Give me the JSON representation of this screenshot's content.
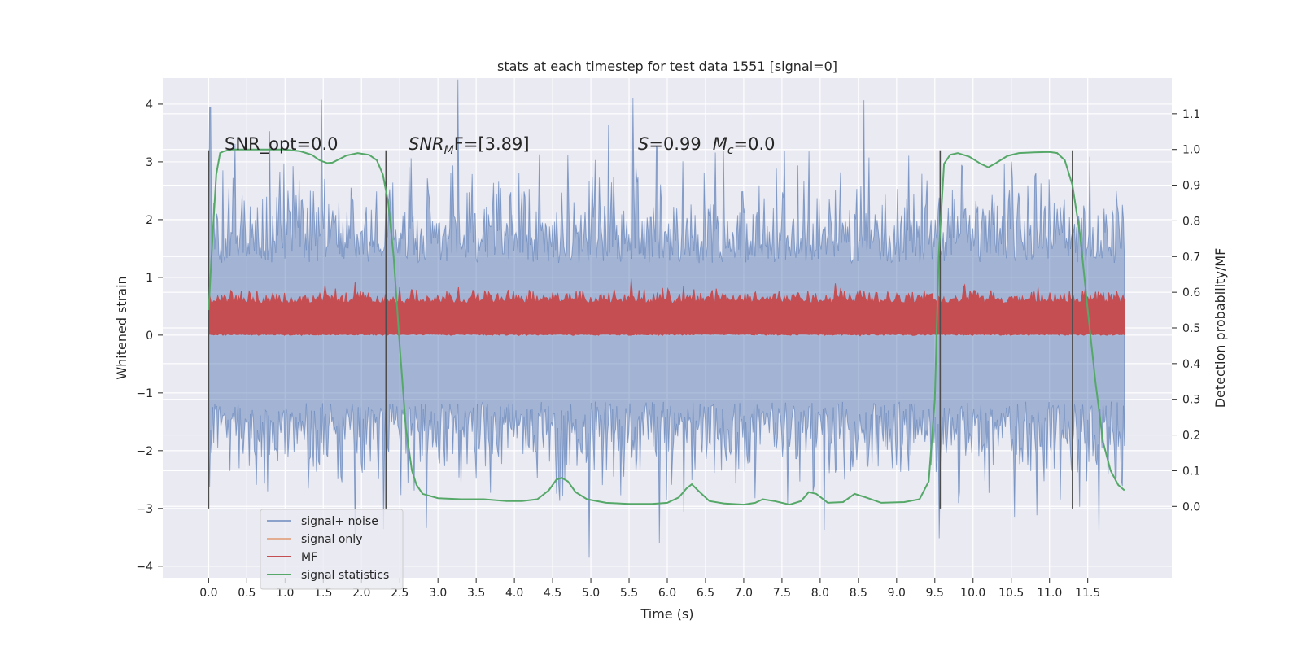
{
  "chart_data": {
    "type": "line",
    "title": "stats at each timestep for test data 1551 [signal=0]",
    "xlabel": "Time (s)",
    "ylabel": "Whitened strain",
    "ylabel_right": "Detection probability/MF",
    "xlim": [
      -0.6,
      12.6
    ],
    "ylim": [
      -4.2,
      4.45
    ],
    "ylim_right": [
      -0.2,
      1.2
    ],
    "x_ticks": [
      "0.0",
      "0.5",
      "1.0",
      "1.5",
      "2.0",
      "2.5",
      "3.0",
      "3.5",
      "4.0",
      "4.5",
      "5.0",
      "5.5",
      "6.0",
      "6.5",
      "7.0",
      "7.5",
      "8.0",
      "8.5",
      "9.0",
      "9.5",
      "10.0",
      "10.5",
      "11.0",
      "11.5"
    ],
    "y_ticks": [
      "4",
      "3",
      "2",
      "1",
      "0",
      "−1",
      "−2",
      "−3",
      "−4"
    ],
    "y_ticks_right": [
      "1.1",
      "1.0",
      "0.9",
      "0.8",
      "0.7",
      "0.6",
      "0.5",
      "0.4",
      "0.3",
      "0.2",
      "0.1",
      "0.0"
    ],
    "grid": true,
    "legend_placement": "lower-left",
    "annotations": {
      "snr_opt": "SNR_opt=0.0",
      "snr_mf_var": "SNR",
      "snr_mf_sub": "M",
      "snr_mf_tail": "F=[3.89]",
      "s_var": "S",
      "s_value": "=0.99",
      "mc_var": "M",
      "mc_sub": "c",
      "mc_value": "=0.0"
    },
    "vertical_markers_x": [
      0.0,
      2.32,
      9.57,
      11.3
    ],
    "series": [
      {
        "name": "signal+ noise",
        "color": "#4c72b0",
        "axis": "left",
        "kind": "noise",
        "x_range": [
          0.0,
          11.98
        ],
        "band_core": [
          -1.15,
          1.25
        ],
        "envelope_typ": [
          -2.3,
          2.4
        ],
        "extremes": [
          {
            "x": 0.02,
            "y": 3.95
          },
          {
            "x": 5.55,
            "y": 4.1
          },
          {
            "x": 4.98,
            "y": -3.85
          },
          {
            "x": 11.65,
            "y": -3.4
          }
        ]
      },
      {
        "name": "signal only",
        "color": "#dd8452",
        "axis": "left",
        "kind": "flat",
        "values": [
          0.0
        ]
      },
      {
        "name": "MF",
        "color": "#c44e52",
        "axis": "left",
        "kind": "noise",
        "x_range": [
          0.0,
          11.98
        ],
        "band_core": [
          0.02,
          0.55
        ],
        "envelope_typ": [
          0.0,
          0.75
        ]
      },
      {
        "name": "signal statistics",
        "color": "#55a868",
        "axis": "right",
        "kind": "line",
        "x": [
          0.0,
          0.05,
          0.1,
          0.15,
          0.2,
          0.3,
          0.5,
          0.8,
          1.0,
          1.2,
          1.35,
          1.45,
          1.55,
          1.62,
          1.7,
          1.8,
          1.95,
          2.1,
          2.2,
          2.28,
          2.35,
          2.42,
          2.5,
          2.58,
          2.66,
          2.72,
          2.8,
          3.0,
          3.3,
          3.6,
          3.9,
          4.1,
          4.3,
          4.45,
          4.55,
          4.62,
          4.7,
          4.8,
          4.95,
          5.2,
          5.5,
          5.8,
          6.0,
          6.15,
          6.25,
          6.32,
          6.4,
          6.55,
          6.75,
          7.0,
          7.15,
          7.25,
          7.4,
          7.6,
          7.75,
          7.85,
          7.95,
          8.1,
          8.3,
          8.45,
          8.6,
          8.8,
          9.1,
          9.3,
          9.42,
          9.5,
          9.55,
          9.62,
          9.7,
          9.8,
          9.95,
          10.1,
          10.2,
          10.3,
          10.45,
          10.6,
          10.8,
          11.0,
          11.1,
          11.2,
          11.3,
          11.4,
          11.5,
          11.6,
          11.7,
          11.8,
          11.9,
          11.98
        ],
        "values": [
          0.55,
          0.75,
          0.93,
          0.99,
          0.995,
          1.0,
          1.0,
          1.0,
          1.0,
          0.995,
          0.985,
          0.97,
          0.962,
          0.963,
          0.972,
          0.983,
          0.99,
          0.985,
          0.97,
          0.93,
          0.85,
          0.7,
          0.45,
          0.22,
          0.1,
          0.06,
          0.035,
          0.023,
          0.02,
          0.02,
          0.015,
          0.015,
          0.02,
          0.045,
          0.075,
          0.08,
          0.07,
          0.04,
          0.02,
          0.01,
          0.007,
          0.007,
          0.01,
          0.025,
          0.05,
          0.062,
          0.045,
          0.015,
          0.008,
          0.005,
          0.01,
          0.02,
          0.015,
          0.005,
          0.015,
          0.04,
          0.035,
          0.01,
          0.012,
          0.035,
          0.025,
          0.01,
          0.012,
          0.02,
          0.07,
          0.3,
          0.7,
          0.96,
          0.985,
          0.99,
          0.98,
          0.96,
          0.95,
          0.962,
          0.982,
          0.99,
          0.992,
          0.993,
          0.99,
          0.97,
          0.9,
          0.76,
          0.55,
          0.35,
          0.18,
          0.1,
          0.06,
          0.045
        ]
      }
    ]
  }
}
